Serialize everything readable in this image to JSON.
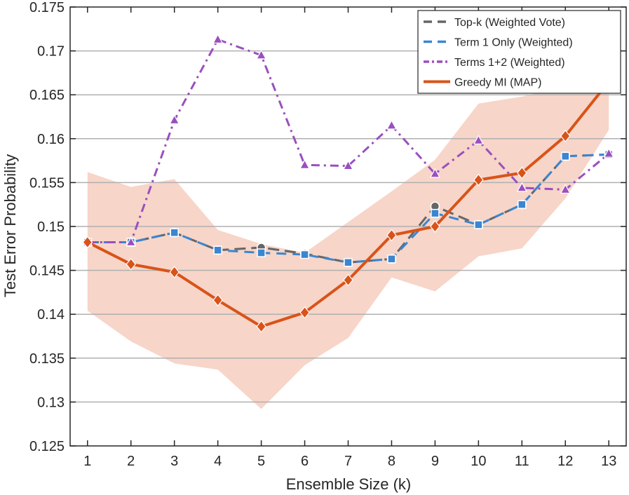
{
  "chart_data": {
    "type": "line",
    "xlabel": "Ensemble Size (k)",
    "ylabel": "Test Error Probability",
    "xlim": [
      0.6,
      13.4
    ],
    "ylim": [
      0.125,
      0.175
    ],
    "x": [
      1,
      2,
      3,
      4,
      5,
      6,
      7,
      8,
      9,
      10,
      11,
      12,
      13
    ],
    "xticks": [
      "1",
      "2",
      "3",
      "4",
      "5",
      "6",
      "7",
      "8",
      "9",
      "10",
      "11",
      "12",
      "13"
    ],
    "yticks": [
      "0.125",
      "0.13",
      "0.135",
      "0.14",
      "0.145",
      "0.15",
      "0.155",
      "0.16",
      "0.165",
      "0.17",
      "0.175"
    ],
    "ytick_values": [
      0.125,
      0.13,
      0.135,
      0.14,
      0.145,
      0.15,
      0.155,
      0.16,
      0.165,
      0.17,
      0.175
    ],
    "grid": "horizontal",
    "legend_position": "top-right",
    "series": [
      {
        "name": "Top-k (Weighted Vote)",
        "color": "#666666",
        "dash": "long-dash",
        "marker": "circle",
        "values": [
          0.1482,
          0.1482,
          0.1493,
          0.1473,
          0.1476,
          0.1469,
          0.1459,
          0.1463,
          0.1523,
          0.1502,
          0.1525,
          0.158,
          0.1582
        ]
      },
      {
        "name": "Term 1 Only (Weighted)",
        "color": "#3a86d1",
        "dash": "dash",
        "marker": "square",
        "values": [
          0.1482,
          0.1482,
          0.1493,
          0.1473,
          0.147,
          0.1468,
          0.1459,
          0.1463,
          0.1515,
          0.1502,
          0.1525,
          0.158,
          0.1582
        ]
      },
      {
        "name": "Terms 1+2 (Weighted)",
        "color": "#9a4fbf",
        "dash": "dash-dot",
        "marker": "triangle",
        "values": [
          0.1482,
          0.1482,
          0.1621,
          0.1713,
          0.1695,
          0.157,
          0.1569,
          0.1615,
          0.156,
          0.1598,
          0.1544,
          0.1542,
          0.1583
        ]
      },
      {
        "name": "Greedy MI (MAP)",
        "color": "#d95319",
        "dash": "solid",
        "marker": "diamond",
        "values": [
          0.1482,
          0.1457,
          0.1448,
          0.1416,
          0.1386,
          0.1402,
          0.1439,
          0.149,
          0.15,
          0.1553,
          0.1561,
          0.1603,
          0.1665
        ]
      }
    ],
    "band": {
      "of": "Greedy MI (MAP)",
      "color": "#f7d5c8",
      "upper": [
        0.1562,
        0.1545,
        0.1554,
        0.1496,
        0.148,
        0.147,
        0.1505,
        0.154,
        0.1576,
        0.164,
        0.1648,
        0.166,
        0.166
      ],
      "lower": [
        0.1404,
        0.1369,
        0.1344,
        0.1337,
        0.1292,
        0.1342,
        0.1373,
        0.1442,
        0.1426,
        0.1466,
        0.1475,
        0.1532,
        0.161
      ]
    }
  }
}
